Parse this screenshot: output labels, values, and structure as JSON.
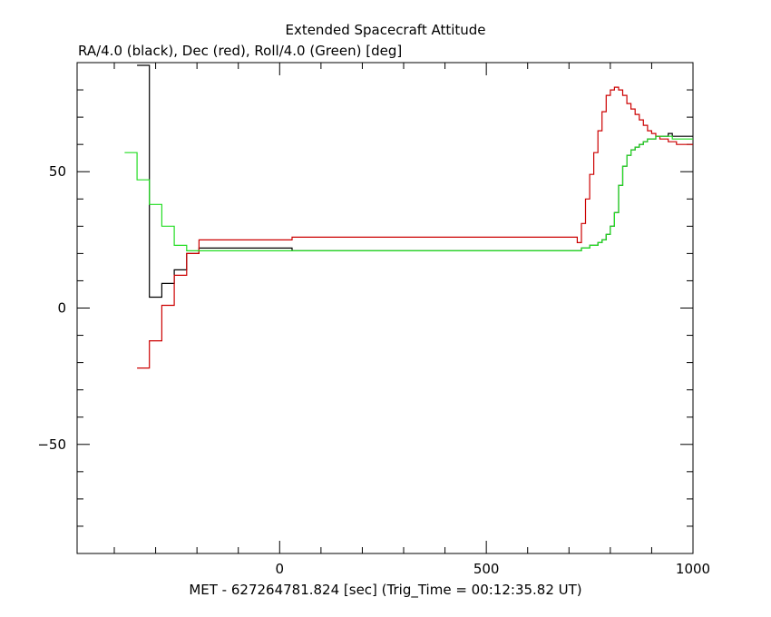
{
  "chart_data": {
    "type": "line",
    "title": "Extended Spacecraft Attitude",
    "subtitle": "RA/4.0 (black), Dec (red), Roll/4.0 (Green) [deg]",
    "xlabel": "MET - 627264781.824 [sec] (Trig_Time = 00:12:35.82 UT)",
    "ylabel": "",
    "xlim": [
      -490,
      1000
    ],
    "ylim": [
      -90,
      90
    ],
    "xticks": [
      0,
      500,
      1000
    ],
    "xtick_labels": [
      "0",
      "500",
      "1000"
    ],
    "yticks": [
      -50,
      0,
      50
    ],
    "ytick_labels": [
      "−50",
      "0",
      "50"
    ],
    "grid": false,
    "series": [
      {
        "name": "RA/4.0 (black)",
        "color": "#000000",
        "step": true,
        "x": [
          -345,
          -315,
          -285,
          -255,
          -225,
          -195,
          30,
          720,
          730,
          740,
          750,
          760,
          770,
          780,
          790,
          800,
          810,
          820,
          830,
          840,
          850,
          860,
          870,
          880,
          890,
          900,
          910,
          920,
          930,
          940,
          950,
          960,
          970,
          980,
          990,
          1000
        ],
        "y": [
          89,
          4,
          9,
          14,
          20,
          22,
          21,
          21,
          22,
          22,
          23,
          23,
          24,
          25,
          27,
          30,
          35,
          45,
          52,
          56,
          58,
          59,
          60,
          61,
          62,
          62,
          63,
          63,
          63,
          64,
          63,
          63,
          63,
          63,
          63,
          63
        ]
      },
      {
        "name": "Dec (red)",
        "color": "#cc0000",
        "step": true,
        "x": [
          -345,
          -315,
          -285,
          -255,
          -225,
          -195,
          30,
          720,
          730,
          740,
          750,
          760,
          770,
          780,
          790,
          800,
          810,
          820,
          830,
          840,
          850,
          860,
          870,
          880,
          890,
          900,
          910,
          920,
          930,
          940,
          950,
          960,
          970,
          980,
          990,
          1000
        ],
        "y": [
          -22,
          -12,
          1,
          12,
          20,
          25,
          26,
          24,
          31,
          40,
          49,
          57,
          65,
          72,
          78,
          80,
          81,
          80,
          78,
          75,
          73,
          71,
          69,
          67,
          65,
          64,
          63,
          62,
          62,
          61,
          61,
          60,
          60,
          60,
          60,
          60
        ]
      },
      {
        "name": "Roll/4.0 (Green)",
        "color": "#22dd22",
        "step": true,
        "x": [
          -375,
          -345,
          -315,
          -285,
          -255,
          -225,
          -195,
          30,
          720,
          730,
          740,
          750,
          760,
          770,
          780,
          790,
          800,
          810,
          820,
          830,
          840,
          850,
          860,
          870,
          880,
          890,
          900,
          910,
          920,
          930,
          940,
          950,
          960,
          970,
          980,
          990,
          1000
        ],
        "y": [
          57,
          47,
          38,
          30,
          23,
          21,
          21,
          21,
          21,
          22,
          22,
          23,
          23,
          24,
          25,
          27,
          30,
          35,
          45,
          52,
          56,
          58,
          59,
          60,
          61,
          62,
          62,
          63,
          63,
          63,
          63,
          62,
          62,
          62,
          62,
          62,
          62
        ]
      }
    ]
  }
}
